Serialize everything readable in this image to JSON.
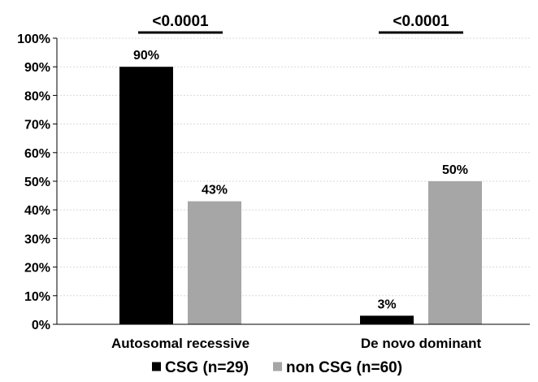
{
  "chart_data": {
    "type": "bar",
    "categories": [
      "Autosomal recessive",
      "De novo dominant"
    ],
    "series": [
      {
        "name": "CSG (n=29)",
        "values": [
          90,
          3
        ],
        "labels": [
          "90%",
          "3%"
        ],
        "color": "#000000"
      },
      {
        "name": "non CSG (n=60)",
        "values": [
          43,
          50
        ],
        "labels": [
          "43%",
          "50%"
        ],
        "color": "#a6a6a6"
      }
    ],
    "ylim": [
      0,
      100
    ],
    "ytick_step": 10,
    "ytick_format": "percent",
    "grid": true,
    "grid_color": "#d9d9d9",
    "legend_position": "bottom",
    "annotations": [
      {
        "text": "<0.0001",
        "category": "Autosomal recessive",
        "type": "significance-bracket"
      },
      {
        "text": "<0.0001",
        "category": "De novo dominant",
        "type": "significance-bracket"
      }
    ]
  }
}
